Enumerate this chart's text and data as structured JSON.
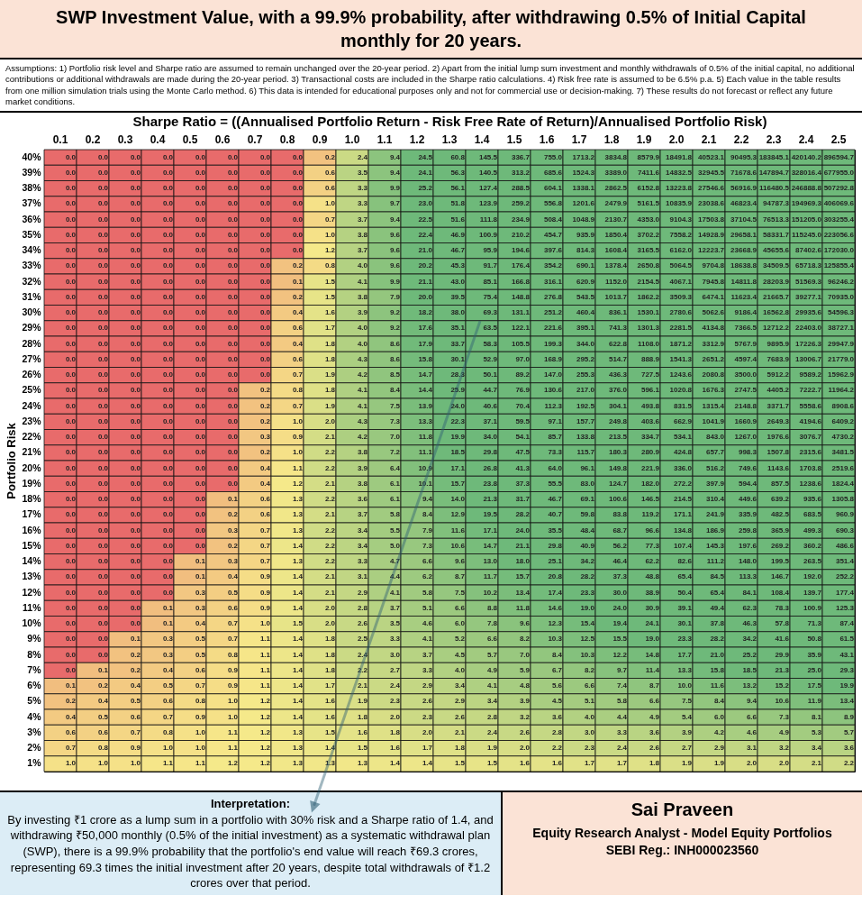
{
  "chart_data": {
    "type": "heatmap",
    "title": "SWP Investment Value, with a 99.9% probability, after withdrawing 0.5% of Initial Capital monthly for 20 years.",
    "subtitle": "Assumptions: 1) Portfolio risk level and Sharpe ratio are assumed to remain unchanged over the 20-year period. 2) Apart from the initial lump sum investment and monthly withdrawals of 0.5% of the initial capital, no additional contributions or additional withdrawals are made during the 20-year period. 3) Transactional costs are included in the Sharpe ratio calculations. 4) Risk free rate is assumed to be 6.5% p.a. 5) Each value in the table results from one million simulation trials using the Monte Carlo method. 6) This data is intended for educational purposes only and not for commercial use or decision-making. 7) These results do not forecast or reflect any future market conditions.",
    "xlabel": "Sharpe Ratio = ((Annualised Portfolio Return - Risk Free Rate of Return)/Annualised Portfolio Risk)",
    "ylabel": "Portfolio Risk",
    "categories": [
      "0.1",
      "0.2",
      "0.3",
      "0.4",
      "0.5",
      "0.6",
      "0.7",
      "0.8",
      "0.9",
      "1.0",
      "1.1",
      "1.2",
      "1.3",
      "1.4",
      "1.5",
      "1.6",
      "1.7",
      "1.8",
      "1.9",
      "2.0",
      "2.1",
      "2.2",
      "2.3",
      "2.4",
      "2.5"
    ],
    "y_categories": [
      "40%",
      "39%",
      "38%",
      "37%",
      "36%",
      "35%",
      "34%",
      "33%",
      "32%",
      "31%",
      "30%",
      "29%",
      "28%",
      "27%",
      "26%",
      "25%",
      "24%",
      "23%",
      "22%",
      "21%",
      "20%",
      "19%",
      "18%",
      "17%",
      "16%",
      "15%",
      "14%",
      "13%",
      "12%",
      "11%",
      "10%",
      "9%",
      "8%",
      "7%",
      "6%",
      "5%",
      "4%",
      "3%",
      "2%",
      "1%"
    ],
    "cells": [
      [
        0,
        0,
        0,
        0,
        0,
        0,
        0,
        0,
        0.2,
        2.4,
        9.4,
        24.5,
        60.8,
        145.5,
        336.7,
        755.0,
        1713.2,
        3834.8,
        8579.9,
        18491.8,
        40523.1,
        90495.3,
        183845.1,
        420140.2,
        896594.7
      ],
      [
        0,
        0,
        0,
        0,
        0,
        0,
        0,
        0,
        0.6,
        3.5,
        9.4,
        24.1,
        56.3,
        140.5,
        313.2,
        685.6,
        1524.3,
        3389.0,
        7411.6,
        14832.5,
        32945.5,
        71678.6,
        147894.7,
        328016.4,
        677955.0
      ],
      [
        0,
        0,
        0,
        0,
        0,
        0,
        0,
        0,
        0.6,
        3.3,
        9.9,
        25.2,
        56.1,
        127.4,
        288.5,
        604.1,
        1338.1,
        2862.5,
        6152.8,
        13223.8,
        27546.6,
        56916.9,
        116480.5,
        246888.8,
        507292.8
      ],
      [
        0,
        0,
        0,
        0,
        0,
        0,
        0,
        0,
        1.0,
        3.3,
        9.7,
        23.0,
        51.8,
        123.9,
        259.2,
        556.8,
        1201.6,
        2479.9,
        5161.5,
        10835.9,
        23038.6,
        46823.4,
        94787.3,
        194969.3,
        406069.6
      ],
      [
        0,
        0,
        0,
        0,
        0,
        0,
        0,
        0,
        0.7,
        3.7,
        9.4,
        22.5,
        51.6,
        111.8,
        234.9,
        508.4,
        1048.9,
        2130.7,
        4353.0,
        9104.3,
        17503.8,
        37104.5,
        76513.3,
        151205.0,
        303255.4
      ],
      [
        0,
        0,
        0,
        0,
        0,
        0,
        0,
        0,
        1.0,
        3.8,
        9.6,
        22.4,
        46.9,
        100.9,
        210.2,
        454.7,
        935.9,
        1850.4,
        3702.2,
        7558.2,
        14928.9,
        29658.1,
        58331.7,
        115245.0,
        223056.6
      ],
      [
        0,
        0,
        0,
        0,
        0,
        0,
        0,
        0,
        1.2,
        3.7,
        9.6,
        21.0,
        46.7,
        95.9,
        194.6,
        397.6,
        814.3,
        1608.4,
        3165.5,
        6162.0,
        12223.7,
        23668.9,
        45655.6,
        87402.6,
        172030.0
      ],
      [
        0,
        0,
        0,
        0,
        0,
        0,
        0,
        0.2,
        0.8,
        4.0,
        9.6,
        20.2,
        45.3,
        91.7,
        176.4,
        354.2,
        690.1,
        1378.4,
        2650.8,
        5064.5,
        9704.8,
        18638.8,
        34509.5,
        65718.3,
        125855.4
      ],
      [
        0,
        0,
        0,
        0,
        0,
        0,
        0,
        0.1,
        1.5,
        4.1,
        9.9,
        21.1,
        43.0,
        85.1,
        166.8,
        316.1,
        620.9,
        1152.0,
        2154.5,
        4067.1,
        7945.8,
        14811.8,
        28203.9,
        51569.3,
        96246.2
      ],
      [
        0,
        0,
        0,
        0,
        0,
        0,
        0,
        0.2,
        1.5,
        3.8,
        7.9,
        20.0,
        39.5,
        75.4,
        148.8,
        276.8,
        543.5,
        1013.7,
        1862.2,
        3509.3,
        6474.1,
        11623.4,
        21665.7,
        39277.1,
        70935.0
      ],
      [
        0,
        0,
        0,
        0,
        0,
        0,
        0,
        0.4,
        1.6,
        3.9,
        9.2,
        18.2,
        38.0,
        69.3,
        131.1,
        251.2,
        460.4,
        836.1,
        1530.1,
        2780.6,
        5062.6,
        9186.4,
        16562.8,
        29935.6,
        54596.3
      ],
      [
        0,
        0,
        0,
        0,
        0,
        0,
        0,
        0.6,
        1.7,
        4.0,
        9.2,
        17.6,
        35.1,
        63.5,
        122.1,
        221.6,
        395.1,
        741.3,
        1301.3,
        2281.5,
        4134.8,
        7366.5,
        12712.2,
        22403.0,
        38727.1
      ],
      [
        0,
        0,
        0,
        0,
        0,
        0,
        0,
        0.4,
        1.8,
        4.0,
        8.6,
        17.9,
        33.7,
        58.3,
        105.5,
        199.3,
        344.0,
        622.8,
        1108.0,
        1871.2,
        3312.9,
        5767.9,
        9895.9,
        17226.3,
        29947.9
      ],
      [
        0,
        0,
        0,
        0,
        0,
        0,
        0,
        0.6,
        1.8,
        4.3,
        8.6,
        15.8,
        30.1,
        52.9,
        97.0,
        168.9,
        295.2,
        514.7,
        888.9,
        1541.3,
        2651.2,
        4597.4,
        7683.9,
        13006.7,
        21779.0
      ],
      [
        0,
        0,
        0,
        0,
        0,
        0,
        0,
        0.7,
        1.9,
        4.2,
        8.5,
        14.7,
        28.3,
        50.1,
        89.2,
        147.0,
        255.3,
        436.3,
        727.5,
        1243.6,
        2080.8,
        3500.0,
        5912.2,
        9589.2,
        15962.9
      ],
      [
        0,
        0,
        0,
        0,
        0,
        0,
        0.2,
        0.8,
        1.8,
        4.1,
        8.4,
        14.4,
        25.9,
        44.7,
        76.9,
        130.6,
        217.0,
        376.0,
        596.1,
        1020.8,
        1676.3,
        2747.5,
        4405.2,
        7222.7,
        11964.2
      ],
      [
        0,
        0,
        0,
        0,
        0,
        0,
        0.2,
        0.7,
        1.9,
        4.1,
        7.5,
        13.9,
        24.0,
        40.6,
        70.4,
        112.3,
        192.5,
        304.1,
        493.8,
        831.5,
        1315.4,
        2148.8,
        3371.7,
        5558.6,
        8908.6
      ],
      [
        0,
        0,
        0,
        0,
        0,
        0,
        0.2,
        1.0,
        2.0,
        4.3,
        7.3,
        13.3,
        22.3,
        37.1,
        59.5,
        97.1,
        157.7,
        249.8,
        403.6,
        662.9,
        1041.9,
        1660.9,
        2649.3,
        4194.6,
        6409.2
      ],
      [
        0,
        0,
        0,
        0,
        0,
        0,
        0.3,
        0.9,
        2.1,
        4.2,
        7.0,
        11.8,
        19.9,
        34.0,
        54.1,
        85.7,
        133.8,
        213.5,
        334.7,
        534.1,
        843.0,
        1267.0,
        1976.6,
        3076.7,
        4730.2
      ],
      [
        0,
        0,
        0,
        0,
        0,
        0,
        0.2,
        1.0,
        2.2,
        3.8,
        7.2,
        11.1,
        18.5,
        29.8,
        47.5,
        73.3,
        115.7,
        180.3,
        280.9,
        424.8,
        657.7,
        998.3,
        1507.8,
        2315.6,
        3481.5
      ],
      [
        0,
        0,
        0,
        0,
        0,
        0,
        0.4,
        1.1,
        2.2,
        3.9,
        6.4,
        10.9,
        17.1,
        26.8,
        41.3,
        64.0,
        96.1,
        149.8,
        221.9,
        336.0,
        516.2,
        749.6,
        1143.6,
        1703.8,
        2519.6
      ],
      [
        0,
        0,
        0,
        0,
        0,
        0,
        0.4,
        1.2,
        2.1,
        3.8,
        6.1,
        10.1,
        15.7,
        23.8,
        37.3,
        55.5,
        83.0,
        124.7,
        182.0,
        272.2,
        397.9,
        594.4,
        857.5,
        1238.6,
        1824.4
      ],
      [
        0,
        0,
        0,
        0,
        0,
        0.1,
        0.6,
        1.3,
        2.2,
        3.6,
        6.1,
        9.4,
        14.0,
        21.3,
        31.7,
        46.7,
        69.1,
        100.6,
        146.5,
        214.5,
        310.4,
        449.6,
        639.2,
        935.6,
        1305.8
      ],
      [
        0,
        0,
        0,
        0,
        0,
        0.2,
        0.6,
        1.3,
        2.1,
        3.7,
        5.8,
        8.4,
        12.9,
        19.5,
        28.2,
        40.7,
        59.8,
        83.8,
        119.2,
        171.1,
        241.9,
        335.9,
        482.5,
        683.5,
        960.9
      ],
      [
        0,
        0,
        0,
        0,
        0,
        0.3,
        0.7,
        1.3,
        2.2,
        3.4,
        5.5,
        7.9,
        11.6,
        17.1,
        24.0,
        35.5,
        48.4,
        68.7,
        96.6,
        134.8,
        186.9,
        259.8,
        365.9,
        499.3,
        690.3
      ],
      [
        0,
        0,
        0,
        0,
        0,
        0.2,
        0.7,
        1.4,
        2.2,
        3.4,
        5.0,
        7.3,
        10.6,
        14.7,
        21.1,
        29.8,
        40.9,
        56.2,
        77.3,
        107.4,
        145.3,
        197.6,
        269.2,
        360.2,
        486.6
      ],
      [
        0,
        0,
        0,
        0,
        0.1,
        0.3,
        0.7,
        1.3,
        2.2,
        3.3,
        4.7,
        6.6,
        9.6,
        13.0,
        18.0,
        25.1,
        34.2,
        46.4,
        62.2,
        82.6,
        111.2,
        148.0,
        199.5,
        263.5,
        351.4
      ],
      [
        0,
        0,
        0,
        0,
        0.1,
        0.4,
        0.9,
        1.4,
        2.1,
        3.1,
        4.4,
        6.2,
        8.7,
        11.7,
        15.7,
        20.8,
        28.2,
        37.3,
        48.8,
        65.4,
        84.5,
        113.3,
        146.7,
        192.0,
        252.2
      ],
      [
        0,
        0,
        0,
        0,
        0.3,
        0.5,
        0.9,
        1.4,
        2.1,
        2.9,
        4.1,
        5.8,
        7.5,
        10.2,
        13.4,
        17.4,
        23.3,
        30.0,
        38.9,
        50.4,
        65.4,
        84.1,
        108.4,
        139.7,
        177.4
      ],
      [
        0,
        0,
        0,
        0.1,
        0.3,
        0.6,
        0.9,
        1.4,
        2.0,
        2.8,
        3.7,
        5.1,
        6.6,
        8.8,
        11.8,
        14.6,
        19.0,
        24.0,
        30.9,
        39.1,
        49.4,
        62.3,
        78.3,
        100.9,
        125.3
      ],
      [
        0,
        0,
        0,
        0.1,
        0.4,
        0.7,
        1.0,
        1.5,
        2.0,
        2.6,
        3.5,
        4.6,
        6.0,
        7.8,
        9.6,
        12.3,
        15.4,
        19.4,
        24.1,
        30.1,
        37.8,
        46.3,
        57.8,
        71.3,
        87.4
      ],
      [
        0,
        0,
        0.1,
        0.3,
        0.5,
        0.7,
        1.1,
        1.4,
        1.8,
        2.5,
        3.3,
        4.1,
        5.2,
        6.6,
        8.2,
        10.3,
        12.5,
        15.5,
        19.0,
        23.3,
        28.2,
        34.2,
        41.6,
        50.8,
        61.5
      ],
      [
        0,
        0,
        0.2,
        0.3,
        0.5,
        0.8,
        1.1,
        1.4,
        1.8,
        2.4,
        3.0,
        3.7,
        4.5,
        5.7,
        7.0,
        8.4,
        10.3,
        12.2,
        14.8,
        17.7,
        21.0,
        25.2,
        29.9,
        35.9,
        43.1
      ],
      [
        0,
        0.1,
        0.2,
        0.4,
        0.6,
        0.9,
        1.1,
        1.4,
        1.8,
        2.2,
        2.7,
        3.3,
        4.0,
        4.9,
        5.9,
        6.7,
        8.2,
        9.7,
        11.4,
        13.3,
        15.8,
        18.5,
        21.3,
        25.0,
        29.3
      ],
      [
        0.1,
        0.2,
        0.4,
        0.5,
        0.7,
        0.9,
        1.1,
        1.4,
        1.7,
        2.1,
        2.4,
        2.9,
        3.4,
        4.1,
        4.8,
        5.6,
        6.6,
        7.4,
        8.7,
        10.0,
        11.6,
        13.2,
        15.2,
        17.5,
        19.9
      ],
      [
        0.2,
        0.4,
        0.5,
        0.6,
        0.8,
        1.0,
        1.2,
        1.4,
        1.6,
        1.9,
        2.3,
        2.6,
        2.9,
        3.4,
        3.9,
        4.5,
        5.1,
        5.8,
        6.6,
        7.5,
        8.4,
        9.4,
        10.6,
        11.9,
        13.4
      ],
      [
        0.4,
        0.5,
        0.6,
        0.7,
        0.9,
        1.0,
        1.2,
        1.4,
        1.6,
        1.8,
        2.0,
        2.3,
        2.6,
        2.8,
        3.2,
        3.6,
        4.0,
        4.4,
        4.9,
        5.4,
        6.0,
        6.6,
        7.3,
        8.1,
        8.9
      ],
      [
        0.6,
        0.6,
        0.7,
        0.8,
        1.0,
        1.1,
        1.2,
        1.3,
        1.5,
        1.6,
        1.8,
        2.0,
        2.1,
        2.4,
        2.6,
        2.8,
        3.0,
        3.3,
        3.6,
        3.9,
        4.2,
        4.6,
        4.9,
        5.3,
        5.7
      ],
      [
        0.7,
        0.8,
        0.9,
        1.0,
        1.0,
        1.1,
        1.2,
        1.3,
        1.4,
        1.5,
        1.6,
        1.7,
        1.8,
        1.9,
        2.0,
        2.2,
        2.3,
        2.4,
        2.6,
        2.7,
        2.9,
        3.1,
        3.2,
        3.4,
        3.6
      ],
      [
        1.0,
        1.0,
        1.0,
        1.1,
        1.1,
        1.2,
        1.2,
        1.3,
        1.3,
        1.3,
        1.4,
        1.4,
        1.5,
        1.5,
        1.6,
        1.6,
        1.7,
        1.7,
        1.8,
        1.9,
        1.9,
        2.0,
        2.0,
        2.1,
        2.2
      ]
    ],
    "data_labels": true,
    "cell_labels": [
      [
        "0.0",
        "0.0",
        "0.0",
        "0.0",
        "0.0",
        "0.0",
        "0.0",
        "0.0",
        "0.2",
        "2.4",
        "9.4",
        "24.5",
        "60.8",
        "145.5",
        "336.7",
        "755.0",
        "1713.2",
        "3834.8",
        "8579.9",
        "18491.8",
        "40523.1",
        "90495.3",
        "183845.1",
        "420140.2",
        "896594.7"
      ],
      [
        "0.0",
        "0.0",
        "0.0",
        "0.0",
        "0.0",
        "0.0",
        "0.0",
        "0.0",
        "0.6",
        "3.5",
        "9.4",
        "24.1",
        "56.3",
        "140.5",
        "313.2",
        "685.6",
        "1524.3",
        "3389.0",
        "7411.6",
        "14832.5",
        "32945.5",
        "71678.6",
        "147894.7",
        "328016.4",
        "677955.0"
      ],
      [
        "0.0",
        "0.0",
        "0.0",
        "0.0",
        "0.0",
        "0.0",
        "0.0",
        "0.0",
        "0.6",
        "3.3",
        "9.9",
        "25.2",
        "56.1",
        "127.4",
        "288.5",
        "604.1",
        "1338.1",
        "2862.5",
        "6152.8",
        "13223.8",
        "27546.6",
        "56916.9",
        "116480.5",
        "246888.8",
        "507292.8"
      ],
      [
        "0.0",
        "0.0",
        "0.0",
        "0.0",
        "0.0",
        "0.0",
        "0.0",
        "0.0",
        "1.0",
        "3.3",
        "9.7",
        "23.0",
        "51.8",
        "123.9",
        "259.2",
        "556.8",
        "1201.6",
        "2479.9",
        "5161.5",
        "10835.9",
        "23038.6",
        "46823.4",
        "94787.3",
        "194969.3",
        "406069.6"
      ],
      [
        "0.0",
        "0.0",
        "0.0",
        "0.0",
        "0.0",
        "0.0",
        "0.0",
        "0.0",
        "0.7",
        "3.7",
        "9.4",
        "22.5",
        "51.6",
        "111.8",
        "234.9",
        "508.4",
        "1048.9",
        "2130.7",
        "4353.0",
        "9104.3",
        "17503.8",
        "37104.5",
        "76513.3",
        "151205.0",
        "303255.4"
      ],
      [
        "0.0",
        "0.0",
        "0.0",
        "0.0",
        "0.0",
        "0.0",
        "0.0",
        "0.0",
        "1.0",
        "3.8",
        "9.6",
        "22.4",
        "46.9",
        "100.9",
        "210.2",
        "454.7",
        "935.9",
        "1850.4",
        "3702.2",
        "7558.2",
        "14928.9",
        "29658.1",
        "58331.7",
        "115245.0",
        "223056.6"
      ],
      [
        "0.0",
        "0.0",
        "0.0",
        "0.0",
        "0.0",
        "0.0",
        "0.0",
        "0.0",
        "1.2",
        "3.7",
        "9.6",
        "21.0",
        "46.7",
        "95.9",
        "194.6",
        "397.6",
        "814.3",
        "1608.4",
        "3165.5",
        "6162.0",
        "12223.7",
        "23668.9",
        "45655.6",
        "87402.6",
        "172030.0"
      ],
      [
        "0.0",
        "0.0",
        "0.0",
        "0.0",
        "0.0",
        "0.0",
        "0.0",
        "0.2",
        "0.8",
        "4.0",
        "9.6",
        "20.2",
        "45.3",
        "91.7",
        "176.4",
        "354.2",
        "690.1",
        "1378.4",
        "2650.8",
        "5064.5",
        "9704.8",
        "18638.8",
        "34509.5",
        "65718.3",
        "125855.4"
      ],
      [
        "0.0",
        "0.0",
        "0.0",
        "0.0",
        "0.0",
        "0.0",
        "0.0",
        "0.1",
        "1.5",
        "4.1",
        "9.9",
        "21.1",
        "43.0",
        "85.1",
        "166.8",
        "316.1",
        "620.9",
        "1152.0",
        "2154.5",
        "4067.1",
        "7945.8",
        "14811.8",
        "28203.9",
        "51569.3",
        "96246.2"
      ],
      [
        "0.0",
        "0.0",
        "0.0",
        "0.0",
        "0.0",
        "0.0",
        "0.0",
        "0.2",
        "1.5",
        "3.8",
        "7.9",
        "20.0",
        "39.5",
        "75.4",
        "148.8",
        "276.8",
        "543.5",
        "1013.7",
        "1862.2",
        "3509.3",
        "6474.1",
        "11623.4",
        "21665.7",
        "39277.1",
        "70935.0"
      ],
      [
        "0.0",
        "0.0",
        "0.0",
        "0.0",
        "0.0",
        "0.0",
        "0.0",
        "0.4",
        "1.6",
        "3.9",
        "9.2",
        "18.2",
        "38.0",
        "69.3",
        "131.1",
        "251.2",
        "460.4",
        "836.1",
        "1530.1",
        "2780.6",
        "5062.6",
        "9186.4",
        "16562.8",
        "29935.6",
        "54596.3"
      ],
      [
        "0.0",
        "0.0",
        "0.0",
        "0.0",
        "0.0",
        "0.0",
        "0.0",
        "0.6",
        "1.7",
        "4.0",
        "9.2",
        "17.6",
        "35.1",
        "63.5",
        "122.1",
        "221.6",
        "395.1",
        "741.3",
        "1301.3",
        "2281.5",
        "4134.8",
        "7366.5",
        "12712.2",
        "22403.0",
        "38727.1"
      ],
      [
        "0.0",
        "0.0",
        "0.0",
        "0.0",
        "0.0",
        "0.0",
        "0.0",
        "0.4",
        "1.8",
        "4.0",
        "8.6",
        "17.9",
        "33.7",
        "58.3",
        "105.5",
        "199.3",
        "344.0",
        "622.8",
        "1108.0",
        "1871.2",
        "3312.9",
        "5767.9",
        "9895.9",
        "17226.3",
        "29947.9"
      ],
      [
        "0.0",
        "0.0",
        "0.0",
        "0.0",
        "0.0",
        "0.0",
        "0.0",
        "0.6",
        "1.8",
        "4.3",
        "8.6",
        "15.8",
        "30.1",
        "52.9",
        "97.0",
        "168.9",
        "295.2",
        "514.7",
        "888.9",
        "1541.3",
        "2651.2",
        "4597.4",
        "7683.9",
        "13006.7",
        "21779.0"
      ],
      [
        "0.0",
        "0.0",
        "0.0",
        "0.0",
        "0.0",
        "0.0",
        "0.0",
        "0.7",
        "1.9",
        "4.2",
        "8.5",
        "14.7",
        "28.3",
        "50.1",
        "89.2",
        "147.0",
        "255.3",
        "436.3",
        "727.5",
        "1243.6",
        "2080.8",
        "3500.0",
        "5912.2",
        "9589.2",
        "15962.9"
      ],
      [
        "0.0",
        "0.0",
        "0.0",
        "0.0",
        "0.0",
        "0.0",
        "0.2",
        "0.8",
        "1.8",
        "4.1",
        "8.4",
        "14.4",
        "25.9",
        "44.7",
        "76.9",
        "130.6",
        "217.0",
        "376.0",
        "596.1",
        "1020.8",
        "1676.3",
        "2747.5",
        "4405.2",
        "7222.7",
        "11964.2"
      ],
      [
        "0.0",
        "0.0",
        "0.0",
        "0.0",
        "0.0",
        "0.0",
        "0.2",
        "0.7",
        "1.9",
        "4.1",
        "7.5",
        "13.9",
        "24.0",
        "40.6",
        "70.4",
        "112.3",
        "192.5",
        "304.1",
        "493.8",
        "831.5",
        "1315.4",
        "2148.8",
        "3371.7",
        "5558.6",
        "8908.6"
      ],
      [
        "0.0",
        "0.0",
        "0.0",
        "0.0",
        "0.0",
        "0.0",
        "0.2",
        "1.0",
        "2.0",
        "4.3",
        "7.3",
        "13.3",
        "22.3",
        "37.1",
        "59.5",
        "97.1",
        "157.7",
        "249.8",
        "403.6",
        "662.9",
        "1041.9",
        "1660.9",
        "2649.3",
        "4194.6",
        "6409.2"
      ],
      [
        "0.0",
        "0.0",
        "0.0",
        "0.0",
        "0.0",
        "0.0",
        "0.3",
        "0.9",
        "2.1",
        "4.2",
        "7.0",
        "11.8",
        "19.9",
        "34.0",
        "54.1",
        "85.7",
        "133.8",
        "213.5",
        "334.7",
        "534.1",
        "843.0",
        "1267.0",
        "1976.6",
        "3076.7",
        "4730.2"
      ],
      [
        "0.0",
        "0.0",
        "0.0",
        "0.0",
        "0.0",
        "0.0",
        "0.2",
        "1.0",
        "2.2",
        "3.8",
        "7.2",
        "11.1",
        "18.5",
        "29.8",
        "47.5",
        "73.3",
        "115.7",
        "180.3",
        "280.9",
        "424.8",
        "657.7",
        "998.3",
        "1507.8",
        "2315.6",
        "3481.5"
      ],
      [
        "0.0",
        "0.0",
        "0.0",
        "0.0",
        "0.0",
        "0.0",
        "0.4",
        "1.1",
        "2.2",
        "3.9",
        "6.4",
        "10.9",
        "17.1",
        "26.8",
        "41.3",
        "64.0",
        "96.1",
        "149.8",
        "221.9",
        "336.0",
        "516.2",
        "749.6",
        "1143.6",
        "1703.8",
        "2519.6"
      ],
      [
        "0.0",
        "0.0",
        "0.0",
        "0.0",
        "0.0",
        "0.0",
        "0.4",
        "1.2",
        "2.1",
        "3.8",
        "6.1",
        "10.1",
        "15.7",
        "23.8",
        "37.3",
        "55.5",
        "83.0",
        "124.7",
        "182.0",
        "272.2",
        "397.9",
        "594.4",
        "857.5",
        "1238.6",
        "1824.4"
      ],
      [
        "0.0",
        "0.0",
        "0.0",
        "0.0",
        "0.0",
        "0.1",
        "0.6",
        "1.3",
        "2.2",
        "3.6",
        "6.1",
        "9.4",
        "14.0",
        "21.3",
        "31.7",
        "46.7",
        "69.1",
        "100.6",
        "146.5",
        "214.5",
        "310.4",
        "449.6",
        "639.2",
        "935.6",
        "1305.8"
      ],
      [
        "0.0",
        "0.0",
        "0.0",
        "0.0",
        "0.0",
        "0.2",
        "0.6",
        "1.3",
        "2.1",
        "3.7",
        "5.8",
        "8.4",
        "12.9",
        "19.5",
        "28.2",
        "40.7",
        "59.8",
        "83.8",
        "119.2",
        "171.1",
        "241.9",
        "335.9",
        "482.5",
        "683.5",
        "960.9"
      ],
      [
        "0.0",
        "0.0",
        "0.0",
        "0.0",
        "0.0",
        "0.3",
        "0.7",
        "1.3",
        "2.2",
        "3.4",
        "5.5",
        "7.9",
        "11.6",
        "17.1",
        "24.0",
        "35.5",
        "48.4",
        "68.7",
        "96.6",
        "134.8",
        "186.9",
        "259.8",
        "365.9",
        "499.3",
        "690.3"
      ],
      [
        "0.0",
        "0.0",
        "0.0",
        "0.0",
        "0.0",
        "0.2",
        "0.7",
        "1.4",
        "2.2",
        "3.4",
        "5.0",
        "7.3",
        "10.6",
        "14.7",
        "21.1",
        "29.8",
        "40.9",
        "56.2",
        "77.3",
        "107.4",
        "145.3",
        "197.6",
        "269.2",
        "360.2",
        "486.6"
      ],
      [
        "0.0",
        "0.0",
        "0.0",
        "0.0",
        "0.1",
        "0.3",
        "0.7",
        "1.3",
        "2.2",
        "3.3",
        "4.7",
        "6.6",
        "9.6",
        "13.0",
        "18.0",
        "25.1",
        "34.2",
        "46.4",
        "62.2",
        "82.6",
        "111.2",
        "148.0",
        "199.5",
        "263.5",
        "351.4"
      ],
      [
        "0.0",
        "0.0",
        "0.0",
        "0.0",
        "0.1",
        "0.4",
        "0.9",
        "1.4",
        "2.1",
        "3.1",
        "4.4",
        "6.2",
        "8.7",
        "11.7",
        "15.7",
        "20.8",
        "28.2",
        "37.3",
        "48.8",
        "65.4",
        "84.5",
        "113.3",
        "146.7",
        "192.0",
        "252.2"
      ],
      [
        "0.0",
        "0.0",
        "0.0",
        "0.0",
        "0.3",
        "0.5",
        "0.9",
        "1.4",
        "2.1",
        "2.9",
        "4.1",
        "5.8",
        "7.5",
        "10.2",
        "13.4",
        "17.4",
        "23.3",
        "30.0",
        "38.9",
        "50.4",
        "65.4",
        "84.1",
        "108.4",
        "139.7",
        "177.4"
      ],
      [
        "0.0",
        "0.0",
        "0.0",
        "0.1",
        "0.3",
        "0.6",
        "0.9",
        "1.4",
        "2.0",
        "2.8",
        "3.7",
        "5.1",
        "6.6",
        "8.8",
        "11.8",
        "14.6",
        "19.0",
        "24.0",
        "30.9",
        "39.1",
        "49.4",
        "62.3",
        "78.3",
        "100.9",
        "125.3"
      ],
      [
        "0.0",
        "0.0",
        "0.0",
        "0.1",
        "0.4",
        "0.7",
        "1.0",
        "1.5",
        "2.0",
        "2.6",
        "3.5",
        "4.6",
        "6.0",
        "7.8",
        "9.6",
        "12.3",
        "15.4",
        "19.4",
        "24.1",
        "30.1",
        "37.8",
        "46.3",
        "57.8",
        "71.3",
        "87.4"
      ],
      [
        "0.0",
        "0.0",
        "0.1",
        "0.3",
        "0.5",
        "0.7",
        "1.1",
        "1.4",
        "1.8",
        "2.5",
        "3.3",
        "4.1",
        "5.2",
        "6.6",
        "8.2",
        "10.3",
        "12.5",
        "15.5",
        "19.0",
        "23.3",
        "28.2",
        "34.2",
        "41.6",
        "50.8",
        "61.5"
      ],
      [
        "0.0",
        "0.0",
        "0.2",
        "0.3",
        "0.5",
        "0.8",
        "1.1",
        "1.4",
        "1.8",
        "2.4",
        "3.0",
        "3.7",
        "4.5",
        "5.7",
        "7.0",
        "8.4",
        "10.3",
        "12.2",
        "14.8",
        "17.7",
        "21.0",
        "25.2",
        "29.9",
        "35.9",
        "43.1"
      ],
      [
        "0.0",
        "0.1",
        "0.2",
        "0.4",
        "0.6",
        "0.9",
        "1.1",
        "1.4",
        "1.8",
        "2.2",
        "2.7",
        "3.3",
        "4.0",
        "4.9",
        "5.9",
        "6.7",
        "8.2",
        "9.7",
        "11.4",
        "13.3",
        "15.8",
        "18.5",
        "21.3",
        "25.0",
        "29.3"
      ],
      [
        "0.1",
        "0.2",
        "0.4",
        "0.5",
        "0.7",
        "0.9",
        "1.1",
        "1.4",
        "1.7",
        "2.1",
        "2.4",
        "2.9",
        "3.4",
        "4.1",
        "4.8",
        "5.6",
        "6.6",
        "7.4",
        "8.7",
        "10.0",
        "11.6",
        "13.2",
        "15.2",
        "17.5",
        "19.9"
      ],
      [
        "0.2",
        "0.4",
        "0.5",
        "0.6",
        "0.8",
        "1.0",
        "1.2",
        "1.4",
        "1.6",
        "1.9",
        "2.3",
        "2.6",
        "2.9",
        "3.4",
        "3.9",
        "4.5",
        "5.1",
        "5.8",
        "6.6",
        "7.5",
        "8.4",
        "9.4",
        "10.6",
        "11.9",
        "13.4"
      ],
      [
        "0.4",
        "0.5",
        "0.6",
        "0.7",
        "0.9",
        "1.0",
        "1.2",
        "1.4",
        "1.6",
        "1.8",
        "2.0",
        "2.3",
        "2.6",
        "2.8",
        "3.2",
        "3.6",
        "4.0",
        "4.4",
        "4.9",
        "5.4",
        "6.0",
        "6.6",
        "7.3",
        "8.1",
        "8.9"
      ],
      [
        "0.6",
        "0.6",
        "0.7",
        "0.8",
        "1.0",
        "1.1",
        "1.2",
        "1.3",
        "1.5",
        "1.6",
        "1.8",
        "2.0",
        "2.1",
        "2.4",
        "2.6",
        "2.8",
        "3.0",
        "3.3",
        "3.6",
        "3.9",
        "4.2",
        "4.6",
        "4.9",
        "5.3",
        "5.7"
      ],
      [
        "0.7",
        "0.8",
        "0.9",
        "1.0",
        "1.0",
        "1.1",
        "1.2",
        "1.3",
        "1.4",
        "1.5",
        "1.6",
        "1.7",
        "1.8",
        "1.9",
        "2.0",
        "2.2",
        "2.3",
        "2.4",
        "2.6",
        "2.7",
        "2.9",
        "3.1",
        "3.2",
        "3.4",
        "3.6"
      ],
      [
        "1.0",
        "1.0",
        "1.0",
        "1.1",
        "1.1",
        "1.2",
        "1.2",
        "1.3",
        "1.3",
        "1.3",
        "1.4",
        "1.4",
        "1.5",
        "1.5",
        "1.6",
        "1.6",
        "1.7",
        "1.7",
        "1.8",
        "1.9",
        "1.9",
        "2.0",
        "2.0",
        "2.1",
        "2.2"
      ]
    ],
    "annotations": [
      "Interpretation:",
      "By investing ₹1 crore as a lump sum in a portfolio with 30% risk and a Sharpe ratio of 1.4, and withdrawing ₹50,000 monthly (0.5% of the initial investment) as a systematic withdrawal plan (SWP), there is a 99.9% probability that the portfolio's end value will reach ₹69.3 crores, representing 69.3 times the initial investment after 20 years, despite total withdrawals of ₹1.2 crores over that period.",
      "Sai Praveen",
      "Equity Research Analyst - Model Equity Portfolios",
      "SEBI Reg.: INH000023560"
    ]
  }
}
